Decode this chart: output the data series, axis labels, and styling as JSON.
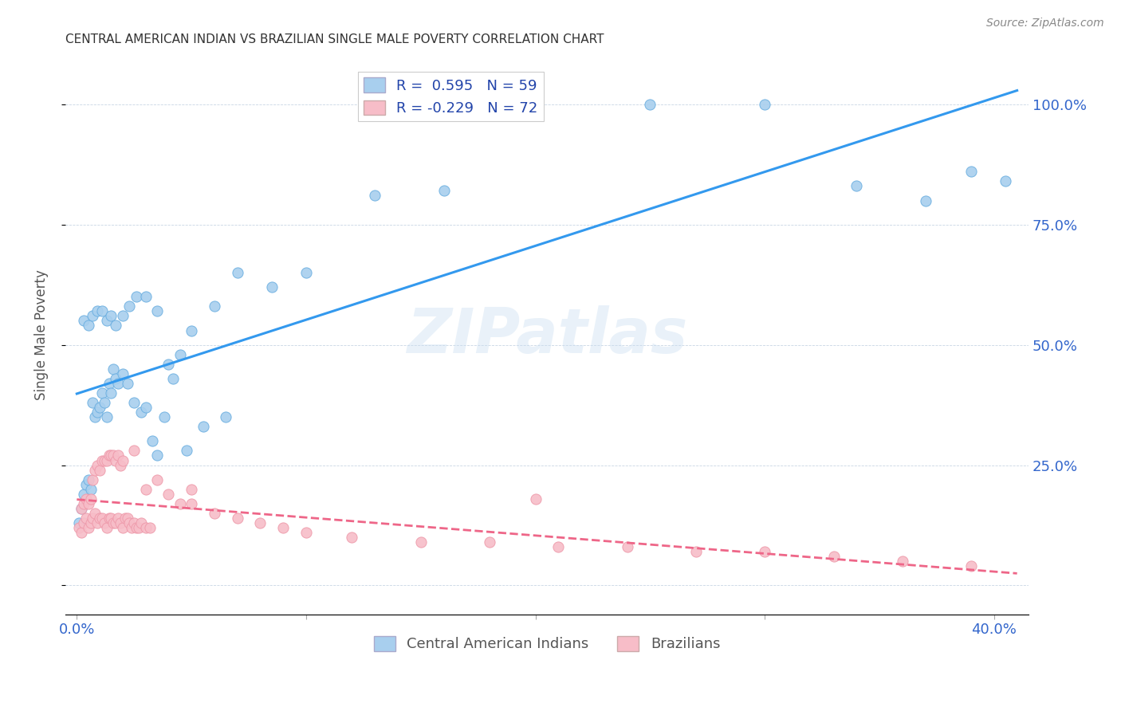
{
  "title": "CENTRAL AMERICAN INDIAN VS BRAZILIAN SINGLE MALE POVERTY CORRELATION CHART",
  "source": "Source: ZipAtlas.com",
  "ylabel": "Single Male Poverty",
  "xlim": [
    -0.005,
    0.415
  ],
  "ylim": [
    -0.06,
    1.1
  ],
  "blue_R": 0.595,
  "blue_N": 59,
  "pink_R": -0.229,
  "pink_N": 72,
  "blue_color": "#A8CFEE",
  "pink_color": "#F7BDC8",
  "blue_edge_color": "#6AAEE0",
  "pink_edge_color": "#EE99AA",
  "blue_line_color": "#3399EE",
  "pink_line_color": "#EE6688",
  "watermark_text": "ZIPatlas",
  "legend_label_blue": "Central American Indians",
  "legend_label_pink": "Brazilians",
  "blue_scatter_x": [
    0.001,
    0.002,
    0.003,
    0.004,
    0.005,
    0.006,
    0.007,
    0.008,
    0.009,
    0.01,
    0.011,
    0.012,
    0.013,
    0.014,
    0.015,
    0.016,
    0.017,
    0.018,
    0.02,
    0.022,
    0.025,
    0.028,
    0.03,
    0.033,
    0.035,
    0.038,
    0.042,
    0.048,
    0.055,
    0.065,
    0.003,
    0.005,
    0.007,
    0.009,
    0.011,
    0.013,
    0.015,
    0.017,
    0.02,
    0.023,
    0.026,
    0.03,
    0.035,
    0.04,
    0.045,
    0.05,
    0.06,
    0.07,
    0.085,
    0.1,
    0.13,
    0.16,
    0.2,
    0.25,
    0.3,
    0.34,
    0.37,
    0.39,
    0.405
  ],
  "blue_scatter_y": [
    0.13,
    0.16,
    0.19,
    0.21,
    0.22,
    0.2,
    0.38,
    0.35,
    0.36,
    0.37,
    0.4,
    0.38,
    0.35,
    0.42,
    0.4,
    0.45,
    0.43,
    0.42,
    0.44,
    0.42,
    0.38,
    0.36,
    0.37,
    0.3,
    0.27,
    0.35,
    0.43,
    0.28,
    0.33,
    0.35,
    0.55,
    0.54,
    0.56,
    0.57,
    0.57,
    0.55,
    0.56,
    0.54,
    0.56,
    0.58,
    0.6,
    0.6,
    0.57,
    0.46,
    0.48,
    0.53,
    0.58,
    0.65,
    0.62,
    0.65,
    0.81,
    0.82,
    1.0,
    1.0,
    1.0,
    0.83,
    0.8,
    0.86,
    0.84
  ],
  "pink_scatter_x": [
    0.001,
    0.002,
    0.003,
    0.004,
    0.005,
    0.006,
    0.007,
    0.008,
    0.009,
    0.01,
    0.011,
    0.012,
    0.013,
    0.014,
    0.015,
    0.016,
    0.017,
    0.018,
    0.019,
    0.02,
    0.021,
    0.022,
    0.023,
    0.024,
    0.025,
    0.026,
    0.027,
    0.028,
    0.03,
    0.032,
    0.002,
    0.003,
    0.004,
    0.005,
    0.006,
    0.007,
    0.008,
    0.009,
    0.01,
    0.011,
    0.012,
    0.013,
    0.014,
    0.015,
    0.016,
    0.017,
    0.018,
    0.019,
    0.02,
    0.025,
    0.03,
    0.035,
    0.04,
    0.045,
    0.05,
    0.06,
    0.07,
    0.08,
    0.09,
    0.1,
    0.12,
    0.15,
    0.18,
    0.21,
    0.24,
    0.27,
    0.3,
    0.33,
    0.36,
    0.39,
    0.05,
    0.2
  ],
  "pink_scatter_y": [
    0.12,
    0.11,
    0.13,
    0.14,
    0.12,
    0.13,
    0.14,
    0.15,
    0.13,
    0.14,
    0.14,
    0.13,
    0.12,
    0.14,
    0.14,
    0.13,
    0.13,
    0.14,
    0.13,
    0.12,
    0.14,
    0.14,
    0.13,
    0.12,
    0.13,
    0.12,
    0.12,
    0.13,
    0.12,
    0.12,
    0.16,
    0.17,
    0.18,
    0.17,
    0.18,
    0.22,
    0.24,
    0.25,
    0.24,
    0.26,
    0.26,
    0.26,
    0.27,
    0.27,
    0.27,
    0.26,
    0.27,
    0.25,
    0.26,
    0.28,
    0.2,
    0.22,
    0.19,
    0.17,
    0.17,
    0.15,
    0.14,
    0.13,
    0.12,
    0.11,
    0.1,
    0.09,
    0.09,
    0.08,
    0.08,
    0.07,
    0.07,
    0.06,
    0.05,
    0.04,
    0.2,
    0.18
  ]
}
